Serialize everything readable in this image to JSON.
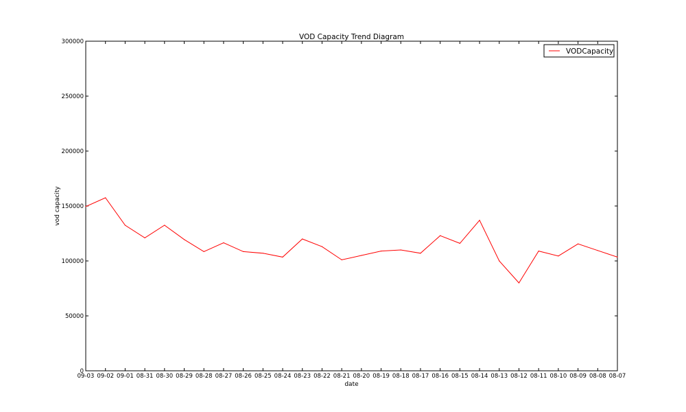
{
  "chart_data": {
    "type": "line",
    "title": "VOD Capacity Trend Diagram",
    "xlabel": "date",
    "ylabel": "vod capacity",
    "ylim": [
      0,
      300000
    ],
    "yticks": [
      "0",
      "50000",
      "100000",
      "150000",
      "200000",
      "250000",
      "300000"
    ],
    "legend_position": "top-right",
    "grid": false,
    "categories": [
      "09-03",
      "09-02",
      "09-01",
      "08-31",
      "08-30",
      "08-29",
      "08-28",
      "08-27",
      "08-26",
      "08-25",
      "08-24",
      "08-23",
      "08-22",
      "08-21",
      "08-20",
      "08-19",
      "08-18",
      "08-17",
      "08-16",
      "08-15",
      "08-14",
      "08-13",
      "08-12",
      "08-11",
      "08-10",
      "08-09",
      "08-08",
      "08-07"
    ],
    "series": [
      {
        "name": "VODCapacity",
        "color": "#ff0000",
        "values": [
          149500,
          157500,
          132500,
          121000,
          132500,
          119500,
          108500,
          116500,
          108500,
          107000,
          103500,
          120000,
          113000,
          101000,
          105000,
          109000,
          110000,
          107000,
          123000,
          116000,
          137000,
          100000,
          80000,
          109000,
          104500,
          115500,
          109500,
          103500
        ]
      }
    ]
  }
}
